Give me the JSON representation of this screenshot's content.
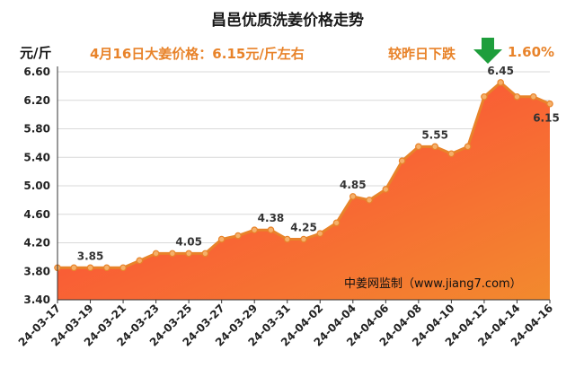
{
  "header": {
    "title": "昌邑优质洗姜价格走势",
    "unit": "元/斤",
    "price_note": "4月16日大姜价格：6.15元/斤左右",
    "change_label": "较昨日下跌",
    "change_value": "1.60%",
    "change_icon": "down-arrow-icon",
    "change_color": "#1e9e3c"
  },
  "chart_data": {
    "type": "area",
    "title": "昌邑优质洗姜价格走势",
    "ylabel": "元/斤",
    "xlabel": "",
    "ylim": [
      3.4,
      6.6
    ],
    "yticks": [
      "3.40",
      "3.80",
      "4.20",
      "4.60",
      "5.00",
      "5.40",
      "5.80",
      "6.20",
      "6.60"
    ],
    "x": [
      "24-03-17",
      "24-03-18",
      "24-03-19",
      "24-03-20",
      "24-03-21",
      "24-03-22",
      "24-03-23",
      "24-03-24",
      "24-03-25",
      "24-03-26",
      "24-03-27",
      "24-03-28",
      "24-03-29",
      "24-03-30",
      "24-03-31",
      "24-04-01",
      "24-04-02",
      "24-04-03",
      "24-04-04",
      "24-04-05",
      "24-04-06",
      "24-04-07",
      "24-04-08",
      "24-04-09",
      "24-04-10",
      "24-04-11",
      "24-04-12",
      "24-04-13",
      "24-04-14",
      "24-04-15",
      "24-04-16"
    ],
    "xticks": [
      "24-03-17",
      "24-03-19",
      "24-03-21",
      "24-03-23",
      "24-03-25",
      "24-03-27",
      "24-03-29",
      "24-03-31",
      "24-04-02",
      "24-04-04",
      "24-04-06",
      "24-04-08",
      "24-04-10",
      "24-04-12",
      "24-04-14",
      "24-04-16"
    ],
    "values": [
      3.85,
      3.85,
      3.85,
      3.85,
      3.85,
      3.95,
      4.05,
      4.05,
      4.05,
      4.05,
      4.25,
      4.3,
      4.38,
      4.38,
      4.25,
      4.25,
      4.33,
      4.48,
      4.85,
      4.8,
      4.95,
      5.35,
      5.55,
      5.55,
      5.45,
      5.55,
      6.25,
      6.45,
      6.25,
      6.25,
      6.15
    ],
    "data_labels": [
      {
        "x": "24-03-19",
        "text": "3.85"
      },
      {
        "x": "24-03-25",
        "text": "4.05"
      },
      {
        "x": "24-03-30",
        "text": "4.38"
      },
      {
        "x": "24-04-01",
        "text": "4.25"
      },
      {
        "x": "24-04-04",
        "text": "4.85"
      },
      {
        "x": "24-04-09",
        "text": "5.55"
      },
      {
        "x": "24-04-13",
        "text": "6.45"
      },
      {
        "x": "24-04-16",
        "text": "6.15"
      }
    ],
    "grid": true,
    "watermark": "中姜网监制（www.jiang7.com）",
    "colors": {
      "line": "#e8832a",
      "fill_top": "#ff3b3b",
      "fill_bottom": "#f28a2e",
      "marker": "#f5b06a",
      "grid": "#d9d9d9"
    }
  }
}
